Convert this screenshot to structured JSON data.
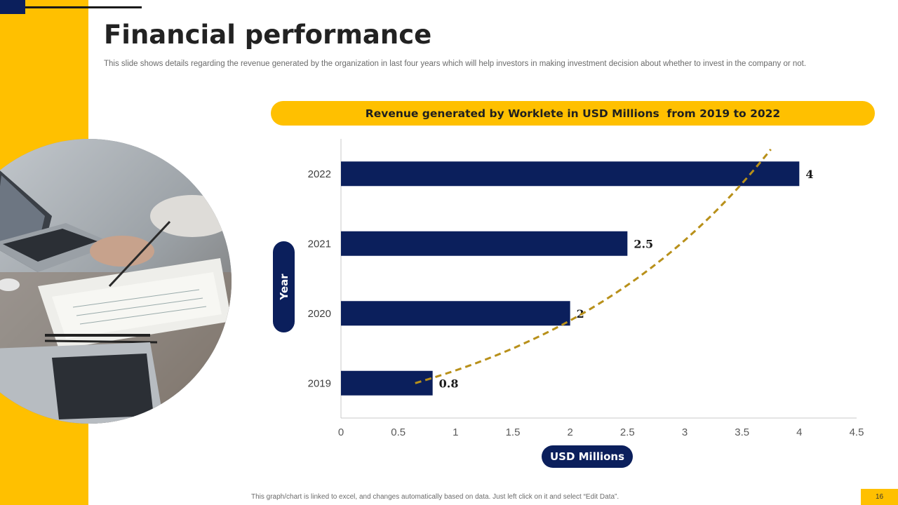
{
  "header": {
    "title": "Financial performance",
    "subtitle": "This slide shows details regarding the revenue generated by the organization in last four years which will help investors in making investment decision about whether to invest in the company or not."
  },
  "footer": {
    "note": "This graph/chart is linked to excel, and changes automatically based on data. Just left click on it and select “Edit Data”.",
    "page_number": "16"
  },
  "colors": {
    "accent": "#FFC000",
    "navy": "#0B1F5C",
    "trendline": "#B8901A"
  },
  "photo": {
    "icon": "laptop-workspace-photo"
  },
  "chart_data": {
    "type": "bar",
    "orientation": "horizontal",
    "title": "Revenue generated by Worklete in USD Millions  from 2019 to 2022",
    "xlabel": "USD Millions",
    "ylabel": "Year",
    "categories": [
      "2019",
      "2020",
      "2021",
      "2022"
    ],
    "values": [
      0.8,
      2,
      2.5,
      4
    ],
    "value_labels": [
      "0.8",
      "2",
      "2.5",
      "4"
    ],
    "xlim": [
      0,
      4.5
    ],
    "xticks": [
      "0",
      "0.5",
      "1",
      "1.5",
      "2",
      "2.5",
      "3",
      "3.5",
      "4",
      "4.5"
    ],
    "trendline": {
      "type": "logarithmic",
      "style": "dashed"
    },
    "grid": false
  }
}
